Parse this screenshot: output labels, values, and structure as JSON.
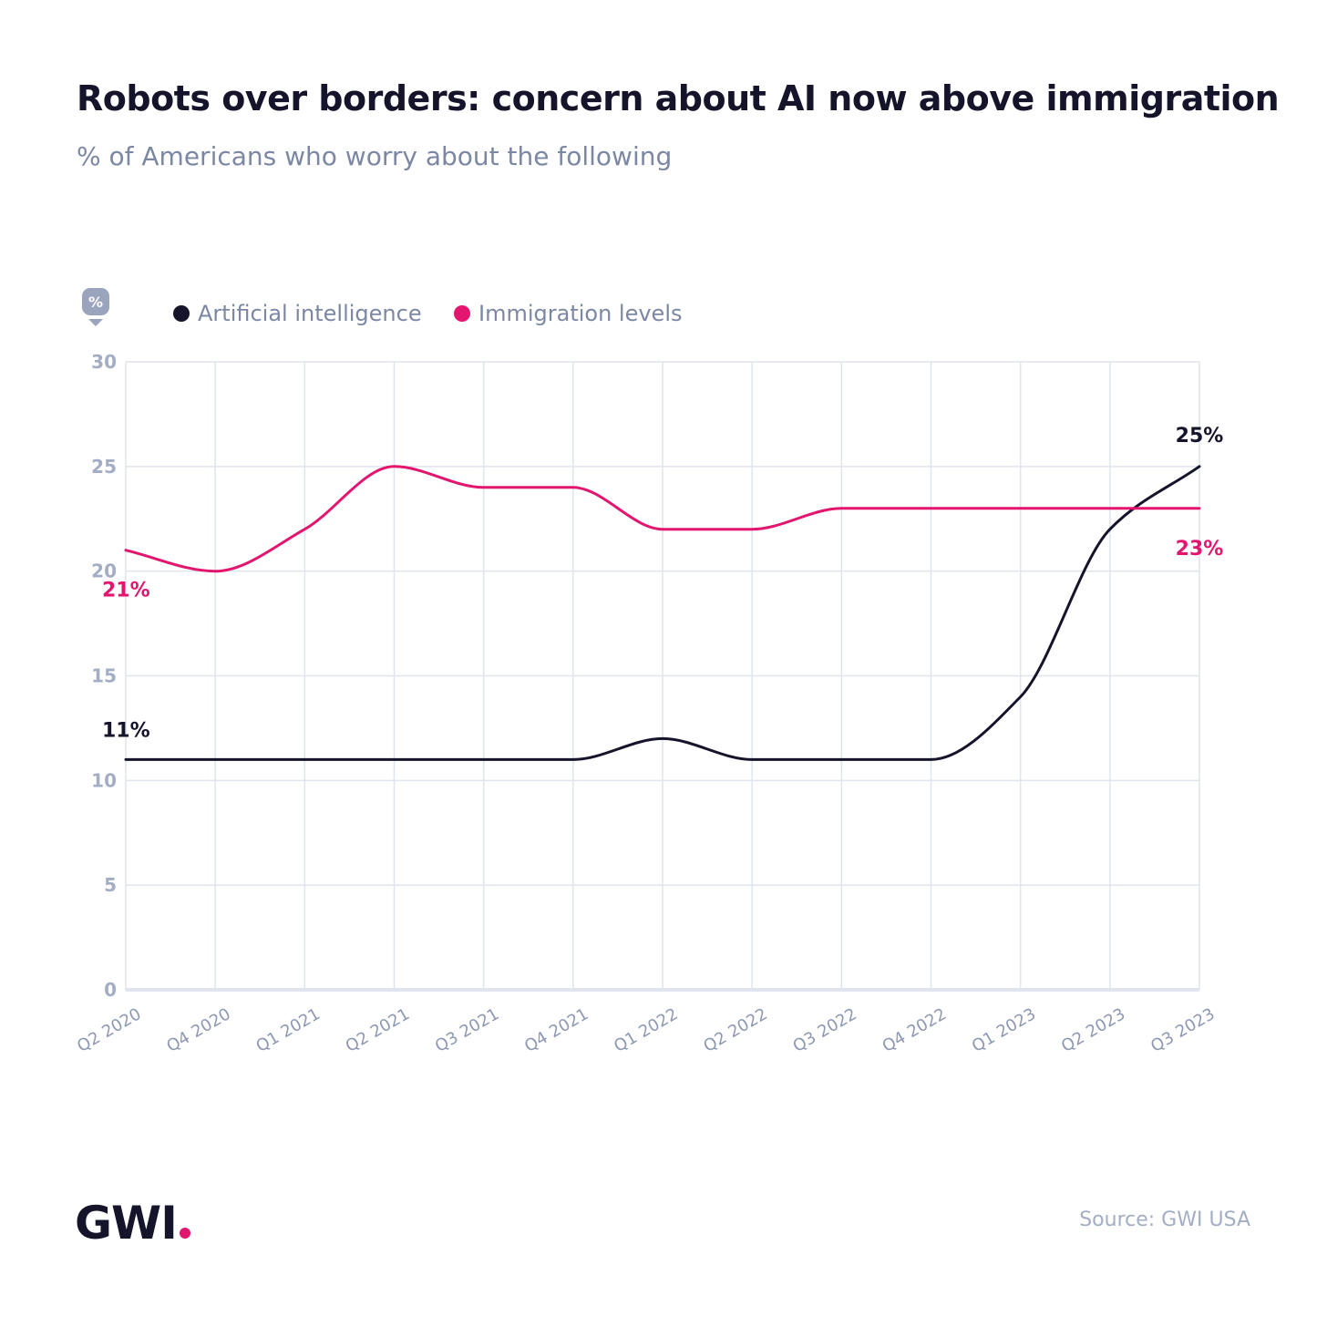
{
  "chart_data": {
    "type": "line",
    "title": "Robots over borders: concern about AI now above immigration",
    "subtitle": "% of Americans who worry about the following",
    "y_unit_badge": "%",
    "categories": [
      "Q2 2020",
      "Q4 2020",
      "Q1 2021",
      "Q2 2021",
      "Q3 2021",
      "Q4 2021",
      "Q1 2022",
      "Q2 2022",
      "Q3 2022",
      "Q4 2022",
      "Q1 2023",
      "Q2 2023",
      "Q3 2023"
    ],
    "series": [
      {
        "name": "Artificial intelligence",
        "color": "#15142b",
        "values": [
          11,
          11,
          11,
          11,
          11,
          11,
          12,
          11,
          11,
          11,
          14,
          22,
          25
        ],
        "start_label": "11%",
        "end_label": "25%"
      },
      {
        "name": "Immigration levels",
        "color": "#e3166f",
        "values": [
          21,
          20,
          22,
          25,
          24,
          24,
          22,
          22,
          23,
          23,
          23,
          23,
          23
        ],
        "start_label": "21%",
        "end_label": "23%"
      }
    ],
    "ylim": [
      0,
      30
    ],
    "yticks": [
      0,
      5,
      10,
      15,
      20,
      25,
      30
    ],
    "grid": true,
    "legend_position": "top-left"
  },
  "footer": {
    "logo_text": "GWI",
    "source": "Source: GWI USA"
  }
}
